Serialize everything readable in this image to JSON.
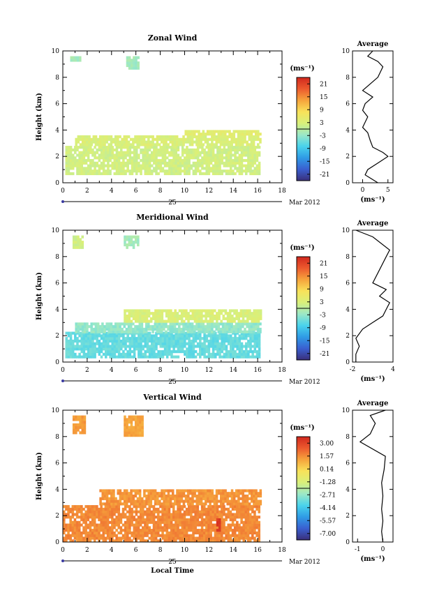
{
  "chart_data": [
    {
      "type": "heatmap",
      "title": "Zonal Wind",
      "xlabel": "",
      "ylabel": "Height (km)",
      "xlim": [
        0,
        18
      ],
      "ylim": [
        0,
        10
      ],
      "x_ticks": [
        "0",
        "2",
        "4",
        "6",
        "8",
        "10",
        "12",
        "14",
        "16",
        "18"
      ],
      "y_ticks": [
        "0",
        "2",
        "4",
        "6",
        "8",
        "10"
      ],
      "date_day": "25",
      "date_month": "Mar 2012",
      "colorbar": {
        "unit": "(ms⁻¹)",
        "ticks": [
          "21",
          "15",
          "9",
          "3",
          "-3",
          "-9",
          "-15",
          "-21"
        ],
        "min": -24,
        "max": 24
      },
      "regions": [
        {
          "x0": 0.6,
          "x1": 1.4,
          "y0": 9.2,
          "y1": 9.6,
          "value": -2
        },
        {
          "x0": 5.2,
          "x1": 6.2,
          "y0": 8.6,
          "y1": 9.6,
          "value": -2
        },
        {
          "x0": 0.2,
          "x1": 16.2,
          "y0": 0.6,
          "y1": 2.8,
          "value": 2
        },
        {
          "x0": 1.0,
          "x1": 16.2,
          "y0": 2.8,
          "y1": 3.6,
          "value": 3
        },
        {
          "x0": 10.0,
          "x1": 16.2,
          "y0": 3.6,
          "y1": 4.0,
          "value": 4
        }
      ],
      "profile": {
        "xlim": [
          -2,
          6
        ],
        "x_ticks": [
          "0",
          "5"
        ],
        "unit": "(ms⁻¹)",
        "title": "Average",
        "points": [
          [
            3,
            0
          ],
          [
            0.5,
            0.6
          ],
          [
            1,
            1.0
          ],
          [
            3,
            1.5
          ],
          [
            5,
            2.0
          ],
          [
            4,
            2.3
          ],
          [
            2,
            2.7
          ],
          [
            1.5,
            3.2
          ],
          [
            1,
            3.8
          ],
          [
            0,
            4.2
          ],
          [
            1,
            5.0
          ],
          [
            0,
            5.5
          ],
          [
            0.5,
            6.0
          ],
          [
            2,
            6.5
          ],
          [
            0,
            7.0
          ],
          [
            3,
            8.0
          ],
          [
            4,
            8.8
          ],
          [
            3,
            9.2
          ],
          [
            1,
            9.6
          ],
          [
            2,
            10
          ]
        ]
      }
    },
    {
      "type": "heatmap",
      "title": "Meridional Wind",
      "xlabel": "",
      "ylabel": "Height (km)",
      "xlim": [
        0,
        18
      ],
      "ylim": [
        0,
        10
      ],
      "x_ticks": [
        "0",
        "2",
        "4",
        "6",
        "8",
        "10",
        "12",
        "14",
        "16",
        "18"
      ],
      "y_ticks": [
        "0",
        "2",
        "4",
        "6",
        "8",
        "10"
      ],
      "date_day": "25",
      "date_month": "Mar 2012",
      "colorbar": {
        "unit": "(ms⁻¹)",
        "ticks": [
          "21",
          "15",
          "9",
          "3",
          "-3",
          "-9",
          "-15",
          "-21"
        ],
        "min": -24,
        "max": 24
      },
      "regions": [
        {
          "x0": 0.8,
          "x1": 1.6,
          "y0": 8.6,
          "y1": 9.5,
          "value": 2
        },
        {
          "x0": 5.0,
          "x1": 6.2,
          "y0": 8.6,
          "y1": 9.6,
          "value": -2
        },
        {
          "x0": 0.2,
          "x1": 16.2,
          "y0": 0.3,
          "y1": 2.2,
          "value": -6
        },
        {
          "x0": 1.0,
          "x1": 16.2,
          "y0": 2.2,
          "y1": 3.0,
          "value": -3
        },
        {
          "x0": 5.0,
          "x1": 16.2,
          "y0": 3.0,
          "y1": 4.0,
          "value": 3
        }
      ],
      "profile": {
        "xlim": [
          -2,
          4
        ],
        "x_ticks": [
          "-2",
          "4"
        ],
        "unit": "(ms⁻¹)",
        "title": "Average",
        "points": [
          [
            -1.5,
            0
          ],
          [
            -1.5,
            0.6
          ],
          [
            -1.0,
            1.2
          ],
          [
            -1.5,
            1.8
          ],
          [
            -0.5,
            2.5
          ],
          [
            1,
            3.0
          ],
          [
            2.5,
            3.5
          ],
          [
            3,
            4.0
          ],
          [
            3.5,
            4.5
          ],
          [
            2,
            5.0
          ],
          [
            3,
            5.5
          ],
          [
            1,
            6.0
          ],
          [
            2,
            7.0
          ],
          [
            3,
            8.0
          ],
          [
            3.5,
            8.5
          ],
          [
            1,
            9.5
          ],
          [
            -1.5,
            10
          ]
        ]
      }
    },
    {
      "type": "heatmap",
      "title": "Vertical Wind",
      "xlabel": "Local Time",
      "ylabel": "Height (km)",
      "xlim": [
        0,
        18
      ],
      "ylim": [
        0,
        10
      ],
      "x_ticks": [
        "0",
        "2",
        "4",
        "6",
        "8",
        "10",
        "12",
        "14",
        "16",
        "18"
      ],
      "y_ticks": [
        "0",
        "2",
        "4",
        "6",
        "8",
        "10"
      ],
      "date_day": "25",
      "date_month": "Mar 2012",
      "colorbar": {
        "unit": "(ms⁻¹)",
        "ticks": [
          "3.00",
          "1.57",
          "0.14",
          "-1.28",
          "-2.71",
          "-4.14",
          "-5.57",
          "-7.00"
        ],
        "min": -7.5,
        "max": 3.5
      },
      "regions": [
        {
          "x0": 0.8,
          "x1": 1.8,
          "y0": 8.2,
          "y1": 9.6,
          "value": 1.2
        },
        {
          "x0": 5.0,
          "x1": 6.6,
          "y0": 8.0,
          "y1": 9.6,
          "value": 1.0
        },
        {
          "x0": 0.0,
          "x1": 16.2,
          "y0": 0.0,
          "y1": 2.8,
          "value": 1.5
        },
        {
          "x0": 3.0,
          "x1": 16.2,
          "y0": 2.8,
          "y1": 4.0,
          "value": 1.3
        },
        {
          "x0": 12.6,
          "x1": 12.9,
          "y0": 0.8,
          "y1": 1.8,
          "value": 3.0
        }
      ],
      "profile": {
        "xlim": [
          -1.2,
          0.4
        ],
        "x_ticks": [
          "-1",
          "0"
        ],
        "unit": "(ms⁻¹)",
        "title": "Average",
        "points": [
          [
            0,
            0
          ],
          [
            -0.05,
            0.8
          ],
          [
            0,
            1.6
          ],
          [
            -0.05,
            2.5
          ],
          [
            0,
            3.5
          ],
          [
            -0.05,
            4.5
          ],
          [
            0.05,
            5.5
          ],
          [
            0.1,
            6.5
          ],
          [
            -0.9,
            7.6
          ],
          [
            -0.5,
            8.2
          ],
          [
            -0.3,
            9.0
          ],
          [
            -0.5,
            9.6
          ],
          [
            0.1,
            10
          ]
        ]
      }
    }
  ]
}
